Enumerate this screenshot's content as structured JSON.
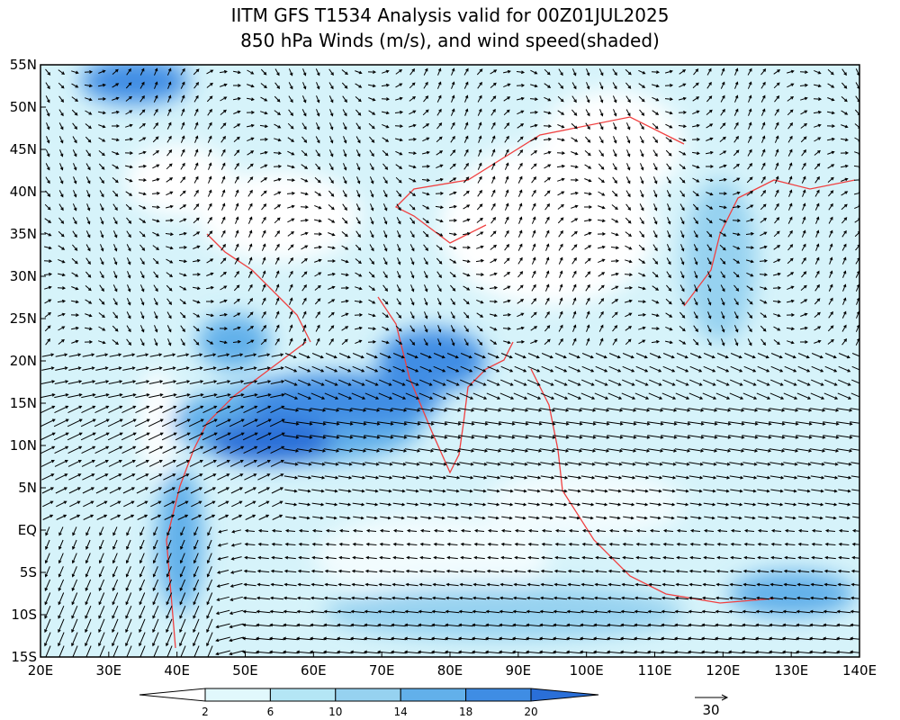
{
  "title": {
    "line1": "IITM GFS T1534 Analysis valid for 00Z01JUL2025",
    "line2": "850 hPa Winds (m/s), and wind speed(shaded)"
  },
  "map": {
    "lat_labels": [
      "55N",
      "50N",
      "45N",
      "40N",
      "35N",
      "30N",
      "25N",
      "20N",
      "15N",
      "10N",
      "5N",
      "EQ",
      "5S",
      "10S",
      "15S"
    ],
    "lon_labels": [
      "20E",
      "30E",
      "40E",
      "50E",
      "60E",
      "70E",
      "80E",
      "90E",
      "100E",
      "110E",
      "120E",
      "130E",
      "140E"
    ]
  },
  "colorbar": {
    "levels": [
      2,
      6,
      10,
      14,
      18,
      20
    ],
    "colors": [
      "#ffffff",
      "#e1f8fc",
      "#b4e6f5",
      "#96d2f0",
      "#62b0ea",
      "#3f8de4",
      "#2a6fd8"
    ]
  },
  "reference_vector": {
    "label": "30"
  }
}
